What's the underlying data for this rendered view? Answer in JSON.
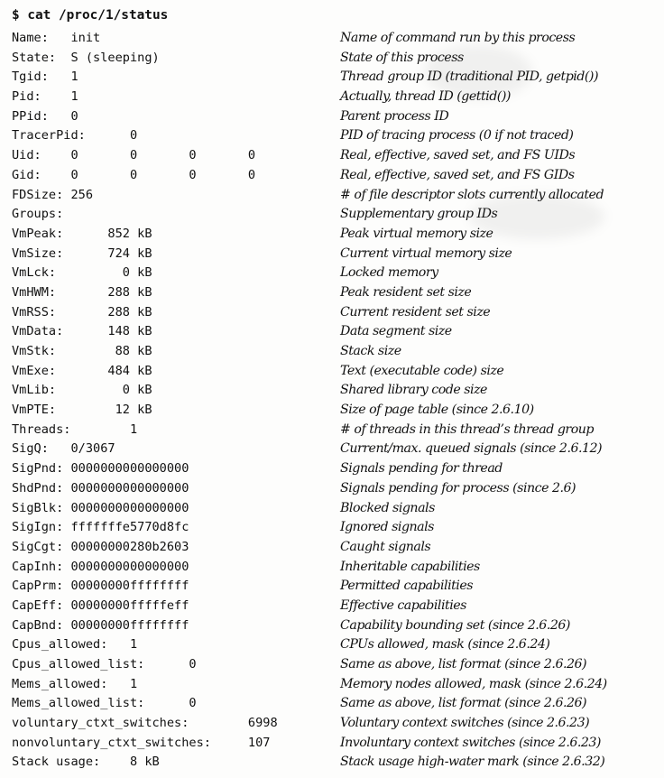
{
  "command": "$ cat /proc/1/status",
  "rows": [
    {
      "field": "Name:   init",
      "desc": "Name of command run by this process"
    },
    {
      "field": "State:  S (sleeping)",
      "desc": "State of this process"
    },
    {
      "field": "Tgid:   1",
      "desc": "Thread group ID (traditional PID, getpid())"
    },
    {
      "field": "Pid:    1",
      "desc": "Actually, thread ID (gettid())"
    },
    {
      "field": "PPid:   0",
      "desc": "Parent process ID"
    },
    {
      "field": "TracerPid:      0",
      "desc": "PID of tracing process (0 if not traced)"
    },
    {
      "field": "Uid:    0       0       0       0",
      "desc": "Real, effective, saved set, and FS UIDs"
    },
    {
      "field": "Gid:    0       0       0       0",
      "desc": "Real, effective, saved set, and FS GIDs"
    },
    {
      "field": "FDSize: 256",
      "desc": "# of file descriptor slots currently allocated"
    },
    {
      "field": "Groups:",
      "desc": "Supplementary group IDs"
    },
    {
      "field": "VmPeak:      852 kB",
      "desc": "Peak virtual memory size"
    },
    {
      "field": "VmSize:      724 kB",
      "desc": "Current virtual memory size"
    },
    {
      "field": "VmLck:         0 kB",
      "desc": "Locked memory"
    },
    {
      "field": "VmHWM:       288 kB",
      "desc": "Peak resident set size"
    },
    {
      "field": "VmRSS:       288 kB",
      "desc": "Current resident set size"
    },
    {
      "field": "VmData:      148 kB",
      "desc": "Data segment size"
    },
    {
      "field": "VmStk:        88 kB",
      "desc": "Stack size"
    },
    {
      "field": "VmExe:       484 kB",
      "desc": "Text (executable code) size"
    },
    {
      "field": "VmLib:         0 kB",
      "desc": "Shared library code size"
    },
    {
      "field": "VmPTE:        12 kB",
      "desc": "Size of page table (since 2.6.10)"
    },
    {
      "field": "Threads:        1",
      "desc": "# of threads in this thread’s thread group"
    },
    {
      "field": "SigQ:   0/3067",
      "desc": "Current/max. queued signals (since 2.6.12)"
    },
    {
      "field": "SigPnd: 0000000000000000",
      "desc": "Signals pending for thread"
    },
    {
      "field": "ShdPnd: 0000000000000000",
      "desc": "Signals pending for process (since 2.6)"
    },
    {
      "field": "SigBlk: 0000000000000000",
      "desc": "Blocked signals"
    },
    {
      "field": "SigIgn: fffffffe5770d8fc",
      "desc": "Ignored signals"
    },
    {
      "field": "SigCgt: 00000000280b2603",
      "desc": "Caught signals"
    },
    {
      "field": "CapInh: 0000000000000000",
      "desc": "Inheritable capabilities"
    },
    {
      "field": "CapPrm: 00000000ffffffff",
      "desc": "Permitted capabilities"
    },
    {
      "field": "CapEff: 00000000fffffeff",
      "desc": "Effective capabilities"
    },
    {
      "field": "CapBnd: 00000000ffffffff",
      "desc": "Capability bounding set (since 2.6.26)"
    },
    {
      "field": "Cpus_allowed:   1",
      "desc": "CPUs allowed, mask (since 2.6.24)"
    },
    {
      "field": "Cpus_allowed_list:      0",
      "desc": "Same as above, list format (since 2.6.26)"
    },
    {
      "field": "Mems_allowed:   1",
      "desc": "Memory nodes allowed, mask (since 2.6.24)"
    },
    {
      "field": "Mems_allowed_list:      0",
      "desc": "Same as above, list format (since 2.6.26)"
    },
    {
      "field": "voluntary_ctxt_switches:        6998",
      "desc": "Voluntary context switches (since 2.6.23)"
    },
    {
      "field": "nonvoluntary_ctxt_switches:     107",
      "desc": "Involuntary context switches (since 2.6.23)"
    },
    {
      "field": "Stack usage:    8 kB",
      "desc": "Stack usage high-water mark (since 2.6.32)"
    }
  ]
}
